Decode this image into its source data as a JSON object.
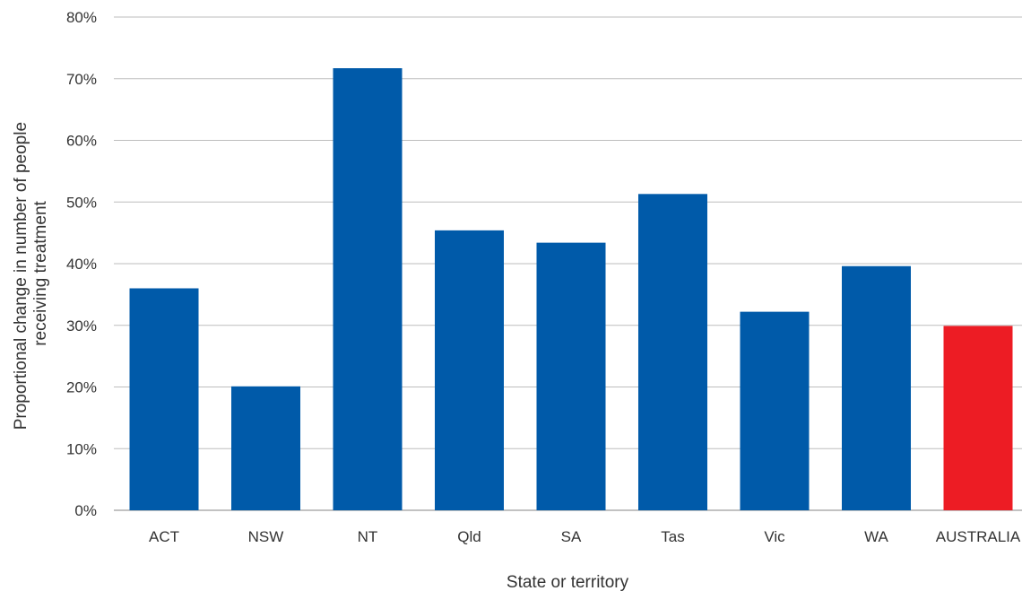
{
  "chart_data": {
    "type": "bar",
    "categories": [
      "ACT",
      "NSW",
      "NT",
      "Qld",
      "SA",
      "Tas",
      "Vic",
      "WA",
      "AUSTRALIA"
    ],
    "series": [
      {
        "values": [
          36,
          20.1,
          71.7,
          45.4,
          43.4,
          51.3,
          32.2,
          39.6,
          29.9
        ],
        "colors": [
          "#005aa9",
          "#005aa9",
          "#005aa9",
          "#005aa9",
          "#005aa9",
          "#005aa9",
          "#005aa9",
          "#005aa9",
          "#ed1c24"
        ]
      }
    ],
    "title": "",
    "xlabel": "State or territory",
    "ylabel_lines": [
      "Proportional change in number of people",
      "receiving treatment"
    ],
    "ylim": [
      0,
      80
    ],
    "yticks": [
      0,
      10,
      20,
      30,
      40,
      50,
      60,
      70,
      80
    ],
    "ytick_labels": [
      "0%",
      "10%",
      "20%",
      "30%",
      "40%",
      "50%",
      "60%",
      "70%",
      "80%"
    ],
    "grid": true,
    "legend": "none"
  }
}
